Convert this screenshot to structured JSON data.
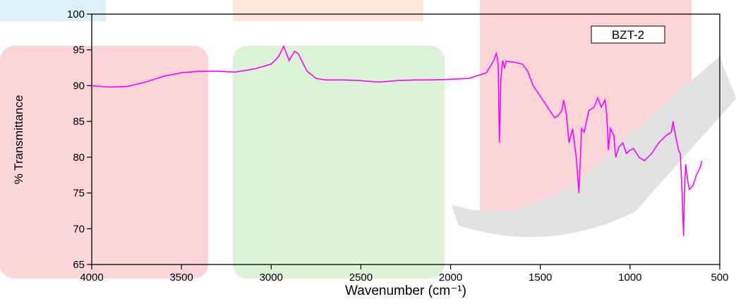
{
  "chart_data": {
    "type": "line",
    "x_label": "Wavenumber (cm⁻¹)",
    "y_label": "% Transmittance",
    "xlim": [
      4000,
      500
    ],
    "xticks": [
      4000,
      3500,
      3000,
      2500,
      2000,
      1500,
      1000,
      500
    ],
    "ylim": [
      65,
      100
    ],
    "yticks": [
      65,
      70,
      75,
      80,
      85,
      90,
      95,
      100
    ],
    "grid": false,
    "legend": "top-right",
    "x": [
      4000,
      3900,
      3800,
      3700,
      3600,
      3500,
      3400,
      3300,
      3200,
      3100,
      3000,
      2960,
      2930,
      2900,
      2870,
      2850,
      2800,
      2750,
      2700,
      2600,
      2500,
      2400,
      2300,
      2200,
      2100,
      2000,
      1900,
      1800,
      1760,
      1745,
      1735,
      1728,
      1720,
      1710,
      1700,
      1690,
      1650,
      1600,
      1570,
      1540,
      1500,
      1460,
      1420,
      1400,
      1380,
      1370,
      1355,
      1340,
      1320,
      1300,
      1285,
      1270,
      1255,
      1230,
      1200,
      1180,
      1160,
      1140,
      1130,
      1120,
      1110,
      1090,
      1080,
      1060,
      1040,
      1020,
      1000,
      980,
      950,
      920,
      880,
      840,
      800,
      770,
      760,
      750,
      730,
      720,
      710,
      702,
      695,
      690,
      680,
      670,
      650,
      630,
      610,
      600
    ],
    "series": [
      {
        "name": "BZT-2",
        "color": "#ff00ff",
        "values": [
          90.0,
          89.8,
          89.9,
          90.5,
          91.3,
          91.8,
          92.0,
          92.0,
          91.9,
          92.3,
          93.0,
          94.0,
          95.5,
          93.5,
          94.8,
          94.5,
          92.0,
          91.0,
          90.8,
          90.8,
          90.7,
          90.5,
          90.7,
          90.8,
          90.8,
          90.9,
          91.0,
          91.8,
          93.5,
          94.5,
          93.0,
          82.0,
          91.0,
          93.5,
          92.5,
          93.4,
          93.3,
          93.0,
          92.0,
          90.0,
          88.5,
          87.0,
          85.5,
          85.8,
          86.5,
          88.0,
          86.0,
          82.0,
          84.0,
          80.0,
          75.0,
          84.0,
          83.5,
          86.5,
          87.0,
          88.3,
          87.0,
          88.0,
          86.0,
          81.0,
          84.0,
          83.0,
          80.0,
          81.5,
          82.0,
          80.5,
          81.0,
          81.2,
          80.0,
          79.5,
          80.5,
          82.0,
          83.0,
          83.5,
          85.0,
          83.5,
          81.0,
          80.5,
          75.0,
          69.0,
          76.5,
          79.0,
          77.0,
          75.5,
          76.0,
          77.5,
          78.5,
          79.5
        ]
      }
    ]
  }
}
